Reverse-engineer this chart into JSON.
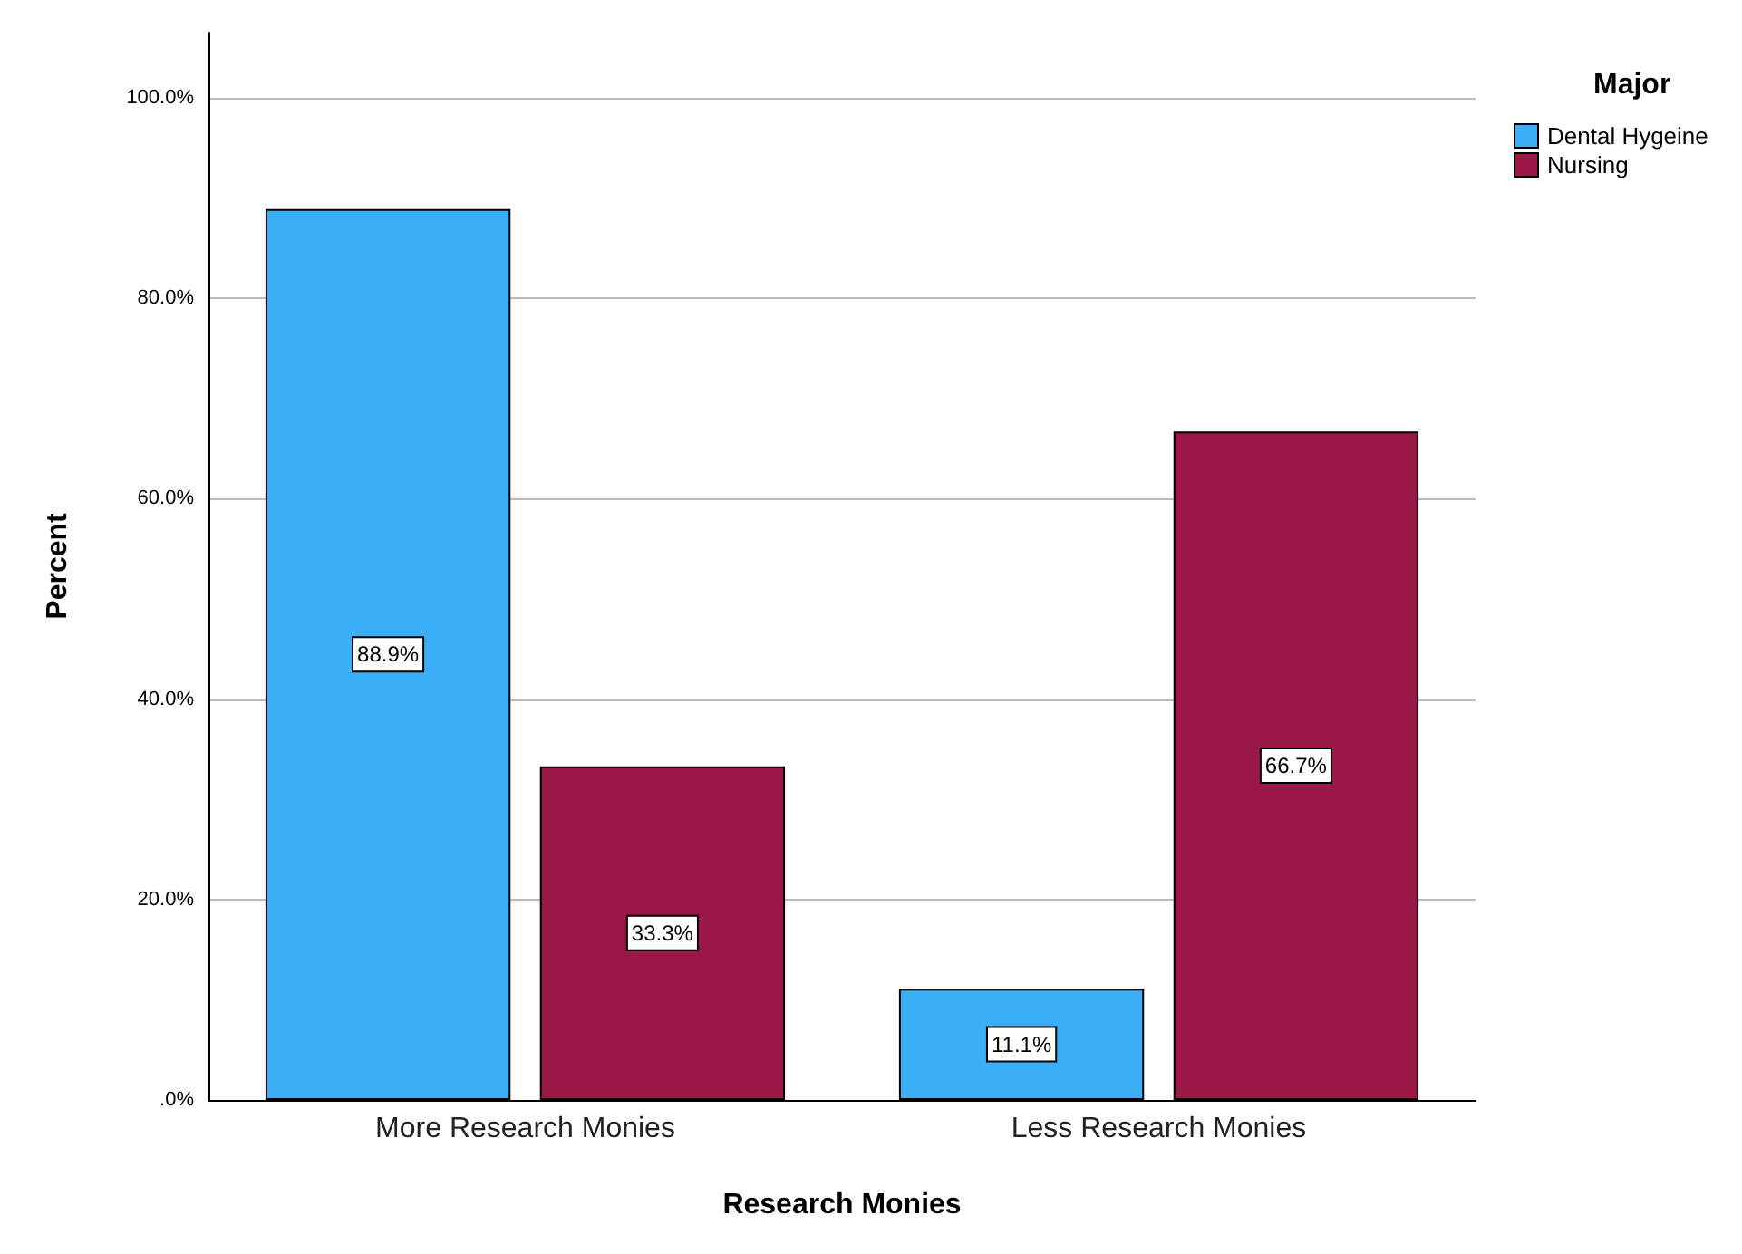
{
  "chart_data": {
    "type": "bar",
    "xlabel": "Research Monies",
    "ylabel": "Percent",
    "legend_title": "Major",
    "categories": [
      "More Research Monies",
      "Less Research Monies"
    ],
    "series": [
      {
        "name": "Dental Hygeine",
        "color": "#3aaef7",
        "values": [
          88.9,
          11.1
        ],
        "value_labels": [
          "88.9%",
          "11.1%"
        ]
      },
      {
        "name": "Nursing",
        "color": "#9b1846",
        "values": [
          33.3,
          66.7
        ],
        "value_labels": [
          "33.3%",
          "66.7%"
        ]
      }
    ],
    "ylim": [
      0,
      106.5
    ],
    "yticks": [
      {
        "value": 0,
        "label": ".0%"
      },
      {
        "value": 20,
        "label": "20.0%"
      },
      {
        "value": 40,
        "label": "40.0%"
      },
      {
        "value": 60,
        "label": "60.0%"
      },
      {
        "value": 80,
        "label": "80.0%"
      },
      {
        "value": 100,
        "label": "100.0%"
      }
    ],
    "grid": "y",
    "legend": "top right"
  }
}
